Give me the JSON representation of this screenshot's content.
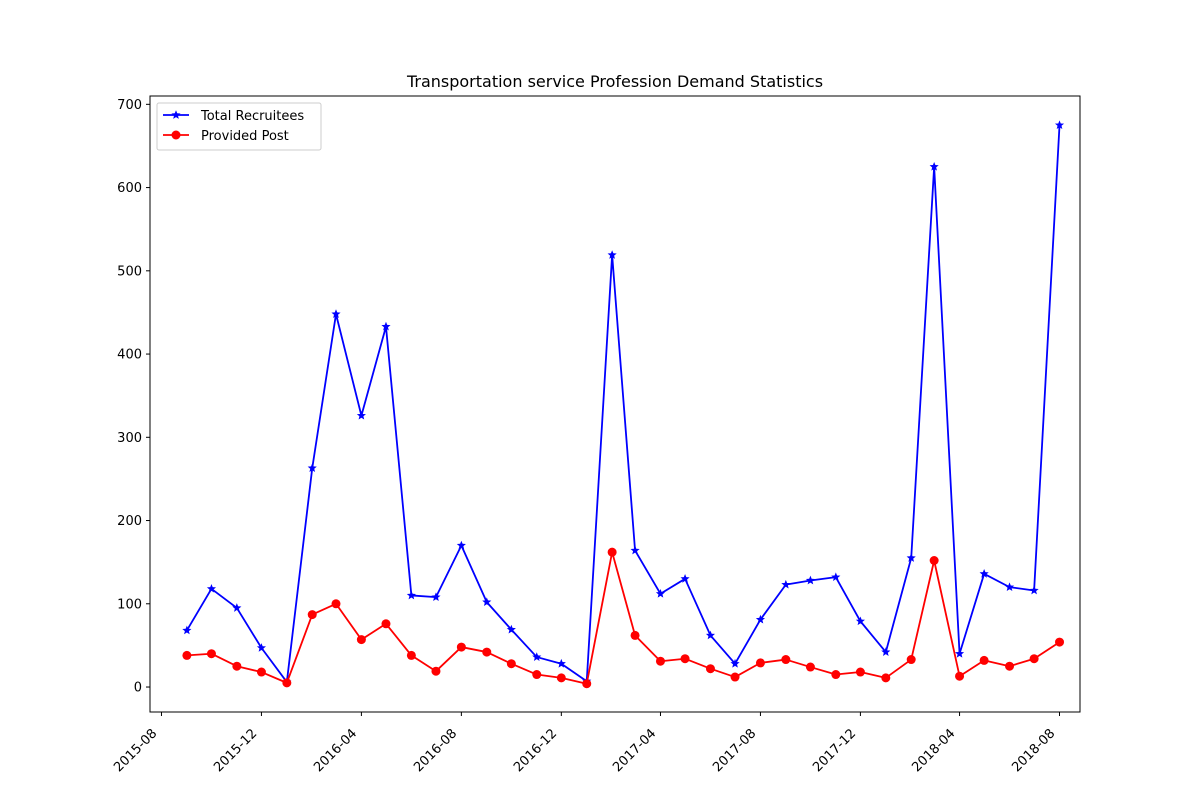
{
  "chart_data": {
    "type": "line",
    "title": "Transportation service Profession Demand Statistics",
    "xlabel": "",
    "ylabel": "",
    "x": [
      "2015-09",
      "2015-10",
      "2015-11",
      "2015-12",
      "2016-01",
      "2016-02",
      "2016-03",
      "2016-04",
      "2016-05",
      "2016-06",
      "2016-07",
      "2016-08",
      "2016-09",
      "2016-10",
      "2016-11",
      "2016-12",
      "2017-01",
      "2017-02",
      "2017-03",
      "2017-04",
      "2017-05",
      "2017-06",
      "2017-07",
      "2017-08",
      "2017-09",
      "2017-10",
      "2017-11",
      "2017-12",
      "2018-01",
      "2018-02",
      "2018-03",
      "2018-04",
      "2018-05",
      "2018-06",
      "2018-07",
      "2018-08"
    ],
    "series": [
      {
        "name": "Total Recruitees",
        "color": "#0000ff",
        "marker": "star",
        "values": [
          68,
          118,
          95,
          47,
          6,
          263,
          448,
          326,
          433,
          110,
          108,
          170,
          102,
          69,
          36,
          28,
          7,
          519,
          164,
          112,
          130,
          62,
          28,
          81,
          123,
          128,
          132,
          79,
          42,
          155,
          625,
          40,
          136,
          120,
          116,
          675
        ]
      },
      {
        "name": "Provided Post",
        "color": "#ff0000",
        "marker": "circle",
        "values": [
          38,
          40,
          25,
          18,
          5,
          87,
          100,
          57,
          76,
          38,
          19,
          48,
          42,
          28,
          15,
          11,
          4,
          162,
          62,
          31,
          34,
          22,
          12,
          29,
          33,
          24,
          15,
          18,
          11,
          33,
          152,
          13,
          32,
          25,
          34,
          54
        ]
      }
    ],
    "x_ticks": [
      "2015-08",
      "2015-12",
      "2016-04",
      "2016-08",
      "2016-12",
      "2017-04",
      "2017-08",
      "2017-12",
      "2018-04",
      "2018-08"
    ],
    "y_ticks": [
      0,
      100,
      200,
      300,
      400,
      500,
      600,
      700
    ],
    "xlim": [
      "2015-07-18",
      "2018-08-26"
    ],
    "ylim": [
      -30,
      710
    ],
    "grid": false,
    "legend": "top-left"
  }
}
